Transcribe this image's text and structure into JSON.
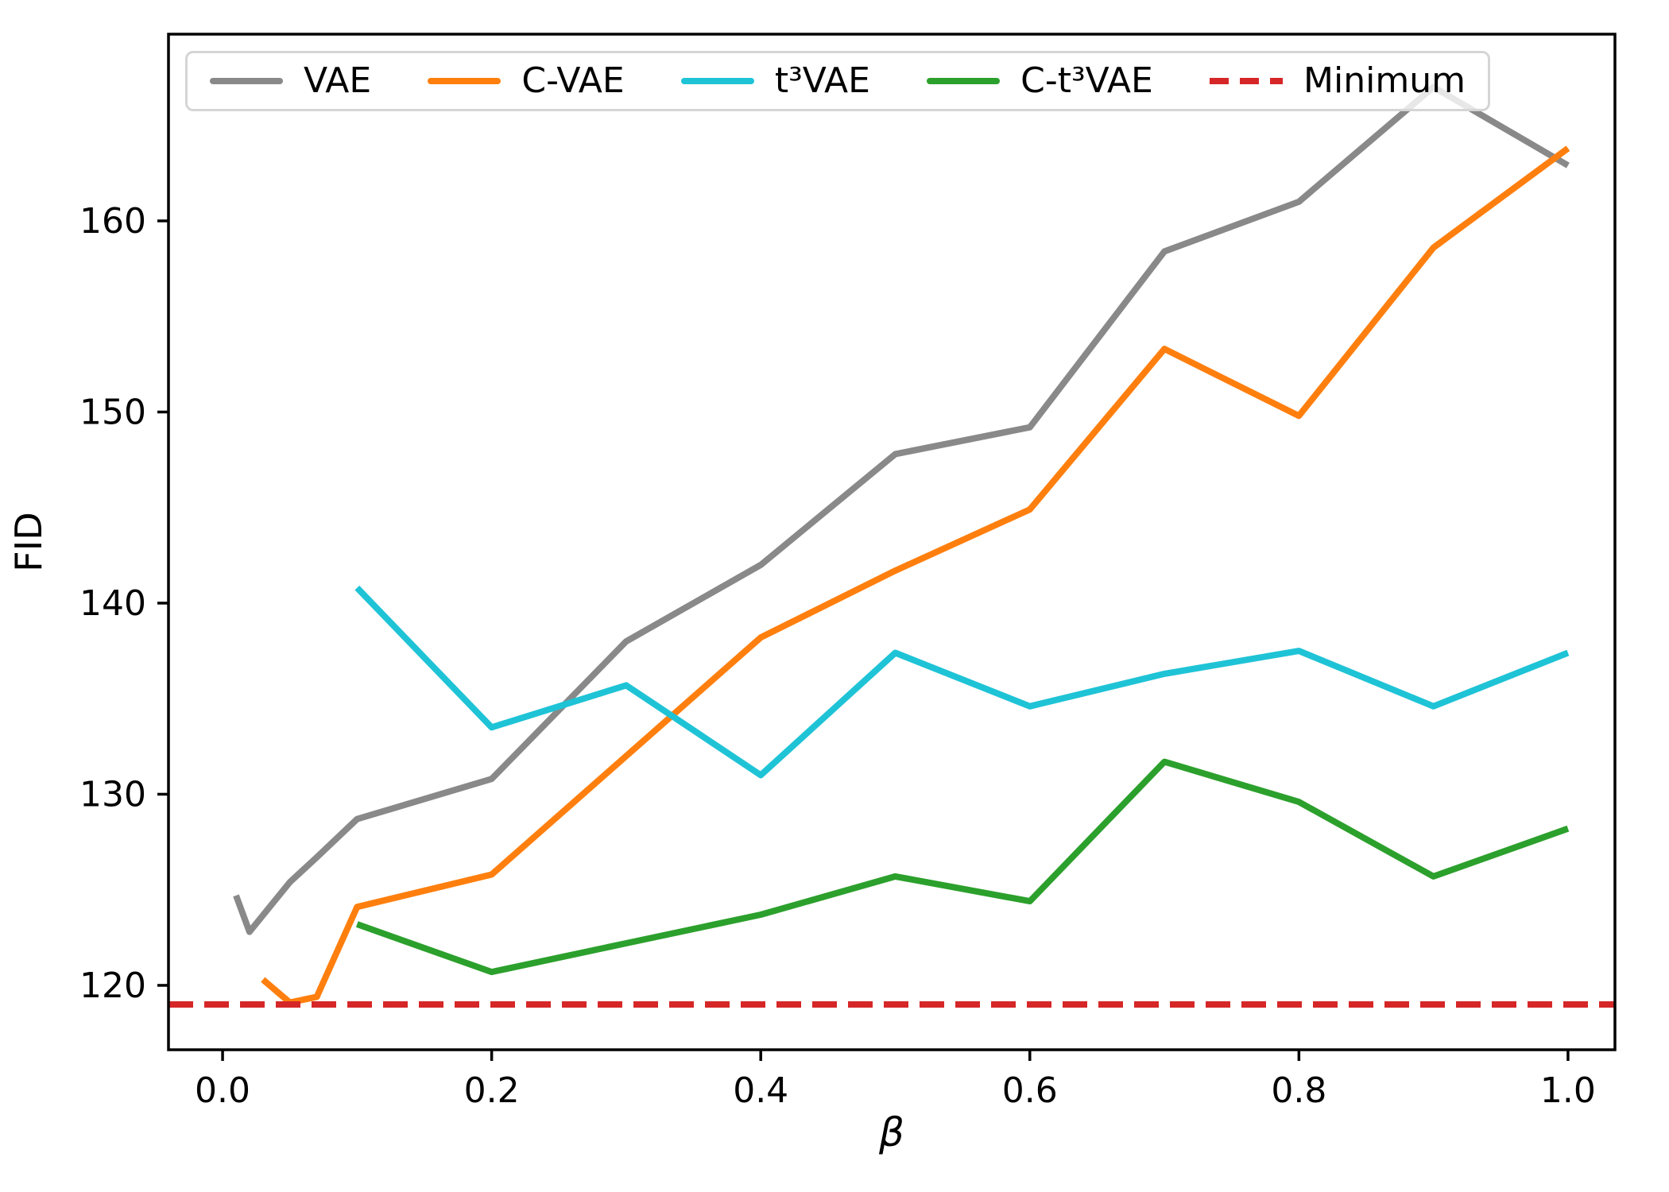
{
  "figure": {
    "background": "#ffffff",
    "axis_color": "#000000",
    "spine_width": 3.5,
    "line_width": 8
  },
  "chart_data": {
    "type": "line",
    "title": "",
    "xlabel": "β",
    "ylabel": "FID",
    "grid": false,
    "legend_position": "upper center",
    "xlim": [
      -0.0402,
      1.0349
    ],
    "ylim": [
      116.63,
      169.77
    ],
    "xticks": [
      0.0,
      0.2,
      0.4,
      0.6,
      0.8,
      1.0
    ],
    "xtick_labels": [
      "0.0",
      "0.2",
      "0.4",
      "0.6",
      "0.8",
      "1.0"
    ],
    "yticks": [
      120,
      130,
      140,
      150,
      160
    ],
    "ytick_labels": [
      "120",
      "130",
      "140",
      "150",
      "160"
    ],
    "series": [
      {
        "name": "VAE",
        "type": "line",
        "color": "#898989",
        "dash": "solid",
        "x": [
          0.01,
          0.02,
          0.05,
          0.07,
          0.1,
          0.2,
          0.3,
          0.4,
          0.5,
          0.6,
          0.7,
          0.8,
          0.9,
          1.0
        ],
        "y": [
          124.7,
          122.8,
          125.4,
          126.7,
          128.7,
          130.8,
          138.0,
          142.0,
          147.8,
          149.2,
          158.4,
          161.0,
          167.0,
          162.9
        ]
      },
      {
        "name": "C-VAE",
        "type": "line",
        "color": "#ff7f0e",
        "dash": "solid",
        "x": [
          0.03,
          0.05,
          0.07,
          0.1,
          0.2,
          0.3,
          0.4,
          0.5,
          0.6,
          0.7,
          0.8,
          0.9,
          1.0
        ],
        "y": [
          120.3,
          119.1,
          119.4,
          124.1,
          125.8,
          132.0,
          138.2,
          141.7,
          144.9,
          153.3,
          149.8,
          158.6,
          163.8
        ]
      },
      {
        "name": "t³VAE",
        "type": "line",
        "color": "#1fc3d6",
        "dash": "solid",
        "x": [
          0.1,
          0.2,
          0.3,
          0.4,
          0.5,
          0.6,
          0.7,
          0.8,
          0.9,
          1.0
        ],
        "y": [
          140.8,
          133.5,
          135.7,
          131.0,
          137.4,
          134.6,
          136.3,
          137.5,
          134.6,
          137.4
        ]
      },
      {
        "name": "C-t³VAE",
        "type": "line",
        "color": "#2ca02c",
        "dash": "solid",
        "x": [
          0.1,
          0.2,
          0.3,
          0.4,
          0.5,
          0.6,
          0.7,
          0.8,
          0.9,
          1.0
        ],
        "y": [
          123.2,
          120.7,
          122.2,
          123.7,
          125.7,
          124.4,
          131.7,
          129.6,
          125.7,
          128.2
        ]
      },
      {
        "name": "Minimum",
        "type": "hline",
        "color": "#d62728",
        "dash": "dashed",
        "value": 119.0
      }
    ]
  }
}
